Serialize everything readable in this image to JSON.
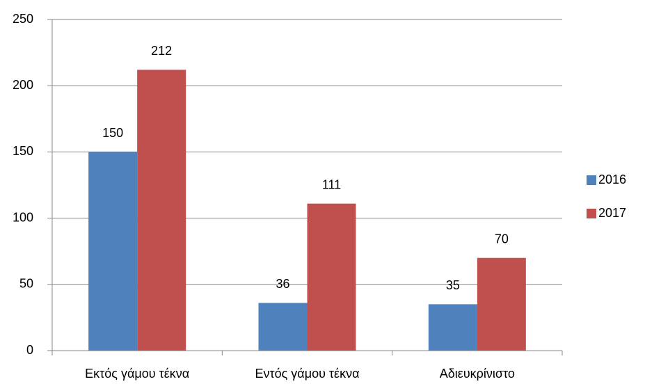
{
  "chart_data": {
    "type": "bar",
    "categories": [
      "Εκτός γάμου τέκνα",
      "Εντός γάμου τέκνα",
      "Αδιευκρίνιστο"
    ],
    "series": [
      {
        "name": "2016",
        "color": "#4f81bd",
        "values": [
          150,
          36,
          35
        ]
      },
      {
        "name": "2017",
        "color": "#c0504d",
        "values": [
          212,
          111,
          70
        ]
      }
    ],
    "ylim": [
      0,
      250
    ],
    "yticks": [
      0,
      50,
      100,
      150,
      200,
      250
    ],
    "grid": true,
    "legend": "right"
  }
}
